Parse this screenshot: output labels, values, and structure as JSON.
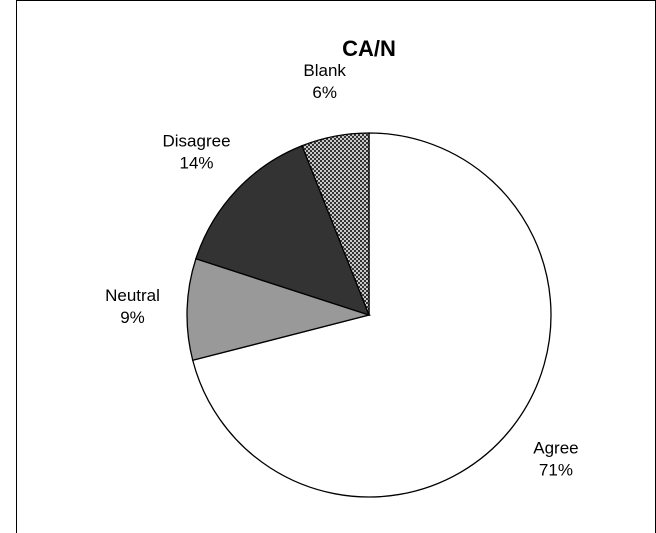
{
  "chart_data": {
    "type": "pie",
    "title": "CA/N",
    "categories": [
      "Agree",
      "Neutral",
      "Disagree",
      "Blank"
    ],
    "values": [
      71,
      9,
      14,
      6
    ],
    "value_labels": [
      "71%",
      "9%",
      "14%",
      "6%"
    ],
    "colors": [
      "#ffffff",
      "#999999",
      "#333333",
      "#c8c8c8"
    ]
  }
}
